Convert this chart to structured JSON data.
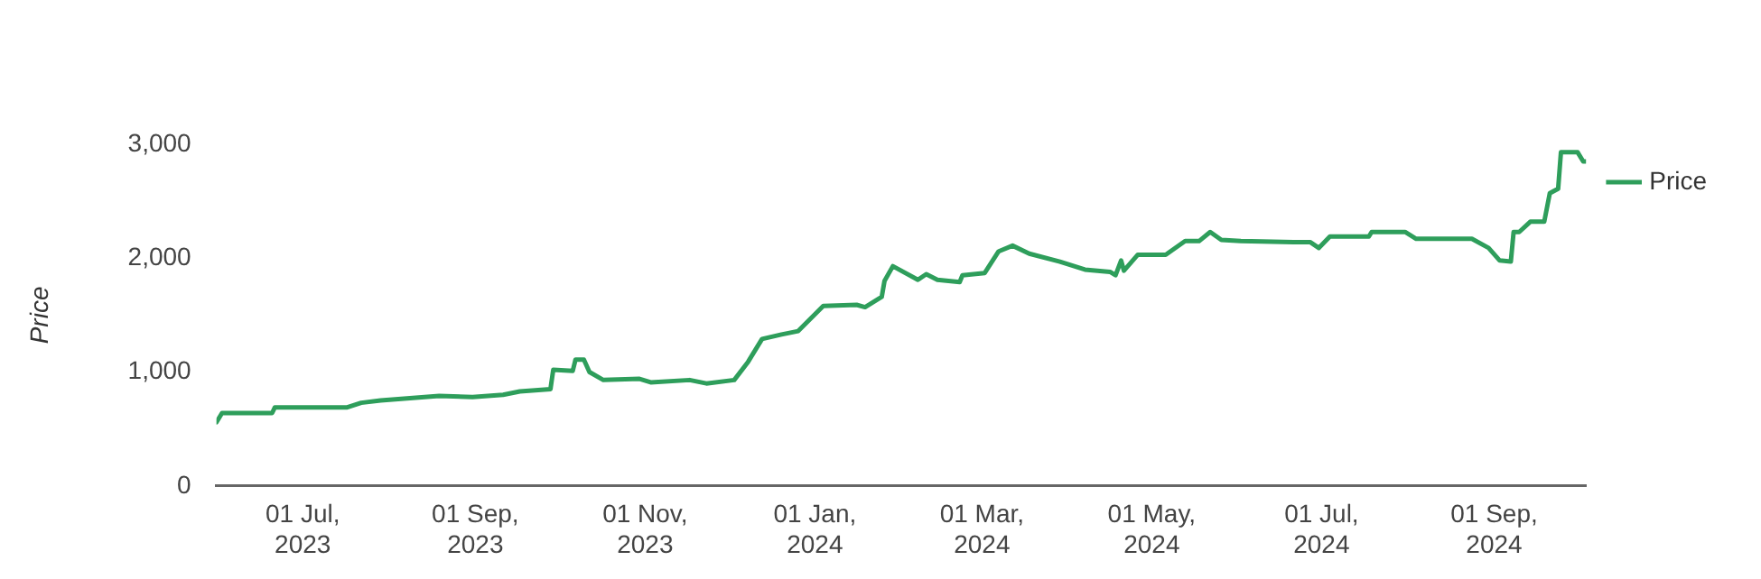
{
  "chart_data": {
    "type": "line",
    "ylabel": "Price",
    "legend": "top right",
    "marker": "none",
    "line_style": "solid",
    "grid": false,
    "xlim": [
      "2023-05-31",
      "2024-10-04"
    ],
    "xticks": [
      {
        "value": "2023-07-01",
        "label": "01 Jul, 2023"
      },
      {
        "value": "2023-09-01",
        "label": "01 Sep, 2023"
      },
      {
        "value": "2023-11-01",
        "label": "01 Nov, 2023"
      },
      {
        "value": "2024-01-01",
        "label": "01 Jan, 2024"
      },
      {
        "value": "2024-03-01",
        "label": "01 Mar, 2024"
      },
      {
        "value": "2024-05-01",
        "label": "01 May, 2024"
      },
      {
        "value": "2024-07-01",
        "label": "01 Jul, 2024"
      },
      {
        "value": "2024-09-01",
        "label": "01 Sep, 2024"
      }
    ],
    "ylim": [
      0,
      3000
    ],
    "yticks": [
      0,
      {
        "value": 1000,
        "label": "1,000"
      },
      {
        "value": 2000,
        "label": "2,000"
      },
      {
        "value": 3000,
        "label": "3,000"
      }
    ],
    "series": [
      {
        "name": "Price",
        "color": "#2e9e5b",
        "x": [
          "2023-05-31",
          "2023-06-02",
          "2023-06-20",
          "2023-06-21",
          "2023-07-17",
          "2023-07-22",
          "2023-07-29",
          "2023-08-19",
          "2023-08-31",
          "2023-09-11",
          "2023-09-17",
          "2023-09-28",
          "2023-09-29",
          "2023-10-06",
          "2023-10-07",
          "2023-10-10",
          "2023-10-12",
          "2023-10-17",
          "2023-10-30",
          "2023-11-03",
          "2023-11-17",
          "2023-11-23",
          "2023-12-03",
          "2023-12-08",
          "2023-12-13",
          "2023-12-20",
          "2023-12-26",
          "2024-01-04",
          "2024-01-16",
          "2024-01-19",
          "2024-01-25",
          "2024-01-26",
          "2024-01-29",
          "2024-02-07",
          "2024-02-10",
          "2024-02-14",
          "2024-02-22",
          "2024-02-23",
          "2024-03-02",
          "2024-03-07",
          "2024-03-12",
          "2024-03-18",
          "2024-03-29",
          "2024-04-07",
          "2024-04-16",
          "2024-04-18",
          "2024-04-20",
          "2024-04-21",
          "2024-04-26",
          "2024-05-06",
          "2024-05-13",
          "2024-05-18",
          "2024-05-22",
          "2024-05-26",
          "2024-06-02",
          "2024-06-21",
          "2024-06-27",
          "2024-06-30",
          "2024-07-04",
          "2024-07-18",
          "2024-07-19",
          "2024-07-31",
          "2024-08-04",
          "2024-08-24",
          "2024-08-30",
          "2024-09-03",
          "2024-09-07",
          "2024-09-08",
          "2024-09-10",
          "2024-09-14",
          "2024-09-19",
          "2024-09-21",
          "2024-09-24",
          "2024-09-25",
          "2024-10-01",
          "2024-10-03",
          "2024-10-04"
        ],
        "values": [
          560,
          640,
          640,
          690,
          690,
          730,
          750,
          790,
          780,
          800,
          830,
          850,
          1020,
          1010,
          1110,
          1110,
          1000,
          930,
          940,
          910,
          930,
          900,
          930,
          1090,
          1290,
          1330,
          1360,
          1580,
          1590,
          1570,
          1660,
          1800,
          1930,
          1810,
          1860,
          1810,
          1790,
          1850,
          1870,
          2060,
          2110,
          2040,
          1970,
          1900,
          1880,
          1850,
          1980,
          1890,
          2030,
          2030,
          2150,
          2150,
          2230,
          2160,
          2150,
          2140,
          2140,
          2090,
          2190,
          2190,
          2230,
          2230,
          2170,
          2170,
          2090,
          1980,
          1970,
          2230,
          2230,
          2320,
          2320,
          2570,
          2610,
          2930,
          2930,
          2850,
          2850
        ]
      }
    ]
  }
}
